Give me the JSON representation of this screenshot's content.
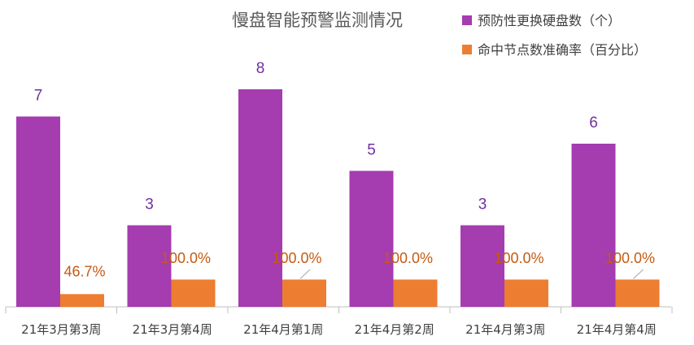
{
  "chart_data": {
    "type": "bar",
    "title": "慢盘智能预警监测情况",
    "categories": [
      "21年3月第3周",
      "21年3月第4周",
      "21年4月第1周",
      "21年4月第2周",
      "21年4月第3周",
      "21年4月第4周"
    ],
    "series": [
      {
        "name": "预防性更换硬盘数（个）",
        "color": "#a53cb0",
        "values": [
          7,
          3,
          8,
          5,
          3,
          6
        ],
        "labels": [
          "7",
          "3",
          "8",
          "5",
          "3",
          "6"
        ]
      },
      {
        "name": "命中节点数准确率（百分比）",
        "color": "#ed7d31",
        "values": [
          46.7,
          100.0,
          100.0,
          100.0,
          100.0,
          100.0
        ],
        "labels": [
          "46.7%",
          "100.0%",
          "100.0%",
          "100.0%",
          "100.0%",
          "100.0%"
        ]
      }
    ],
    "legend_position": "top-right",
    "grid": false
  }
}
